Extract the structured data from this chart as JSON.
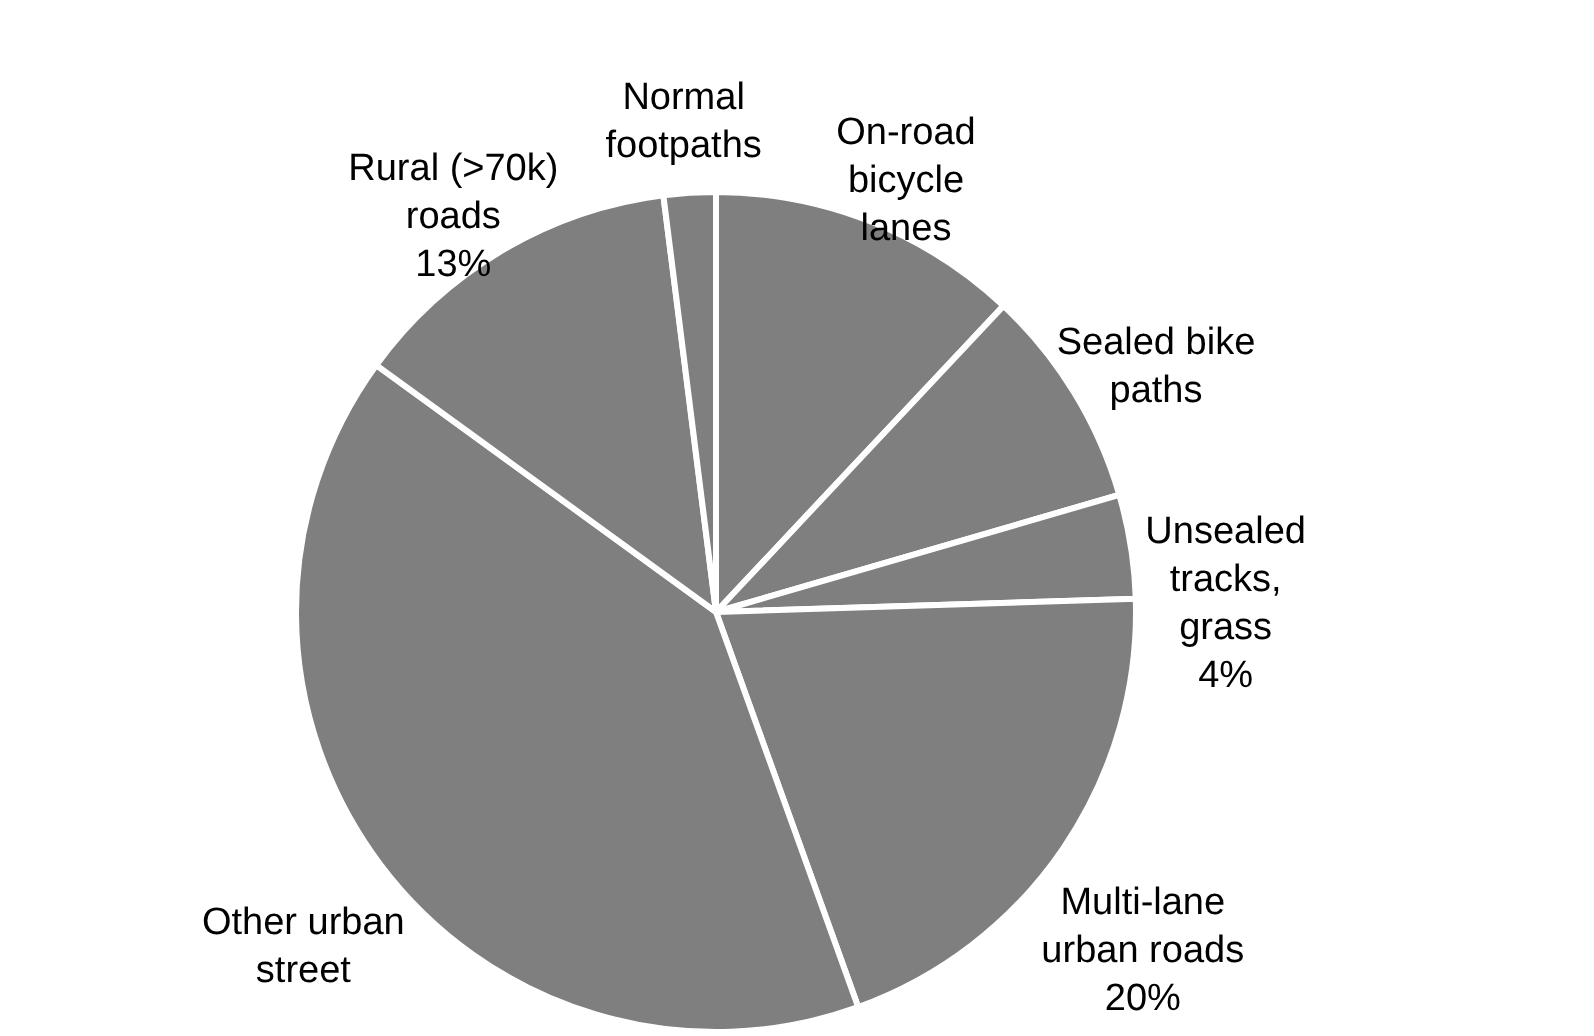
{
  "chart_data": {
    "type": "pie",
    "categories": [
      "On-road bicycle lanes",
      "Sealed bike paths",
      "Unsealed tracks, grass",
      "Multi-lane urban roads",
      "Other urban street",
      "Rural (>70k) roads",
      "Normal footpaths"
    ],
    "values": [
      12,
      8.5,
      4,
      20,
      40.5,
      13,
      2
    ],
    "value_labels": [
      null,
      null,
      "4%",
      "20%",
      null,
      "13%",
      null
    ],
    "colors": [
      "#7f7f7f",
      "#7f7f7f",
      "#7f7f7f",
      "#7f7f7f",
      "#7f7f7f",
      "#7f7f7f",
      "#7f7f7f"
    ]
  }
}
